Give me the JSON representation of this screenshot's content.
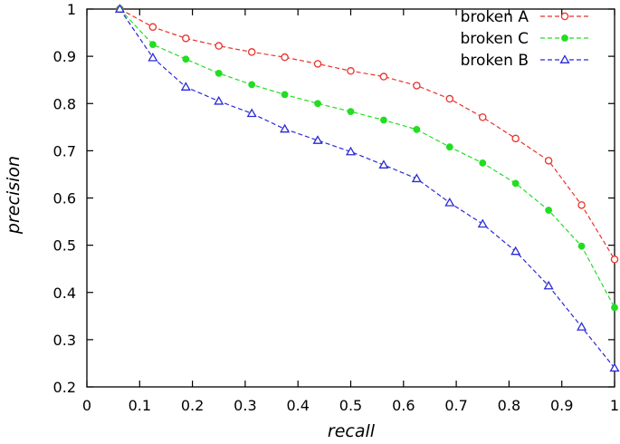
{
  "chart_data": {
    "type": "line",
    "title": "",
    "xlabel": "recall",
    "ylabel": "precision",
    "xlim": [
      0,
      1
    ],
    "ylim": [
      0.2,
      1
    ],
    "xticks": [
      0,
      0.1,
      0.2,
      0.3,
      0.4,
      0.5,
      0.6,
      0.7,
      0.8,
      0.9,
      1
    ],
    "xtick_labels": [
      "0",
      "0.1",
      "0.2",
      "0.3",
      "0.4",
      "0.5",
      "0.6",
      "0.7",
      "0.8",
      "0.9",
      "1"
    ],
    "yticks": [
      0.2,
      0.3,
      0.4,
      0.5,
      0.6,
      0.7,
      0.8,
      0.9,
      1
    ],
    "ytick_labels": [
      "0.2",
      "0.3",
      "0.4",
      "0.5",
      "0.6",
      "0.7",
      "0.8",
      "0.9",
      "1"
    ],
    "grid": false,
    "legend_position": "top-right",
    "x": [
      0.0625,
      0.125,
      0.1875,
      0.25,
      0.3125,
      0.375,
      0.4375,
      0.5,
      0.5625,
      0.625,
      0.6875,
      0.75,
      0.8125,
      0.875,
      0.9375,
      1.0
    ],
    "series": [
      {
        "name": "broken A",
        "color": "#e8322b",
        "marker": "open-circle",
        "values": [
          1.0,
          0.962,
          0.938,
          0.922,
          0.909,
          0.898,
          0.884,
          0.869,
          0.857,
          0.838,
          0.81,
          0.771,
          0.726,
          0.679,
          0.585,
          0.47
        ]
      },
      {
        "name": "broken C",
        "color": "#22dd22",
        "marker": "filled-circle",
        "values": [
          1.0,
          0.925,
          0.894,
          0.864,
          0.84,
          0.819,
          0.8,
          0.783,
          0.765,
          0.745,
          0.708,
          0.674,
          0.631,
          0.574,
          0.498,
          0.368
        ]
      },
      {
        "name": "broken B",
        "color": "#2a2ad6",
        "marker": "open-triangle",
        "values": [
          1.0,
          0.897,
          0.835,
          0.805,
          0.779,
          0.746,
          0.722,
          0.698,
          0.67,
          0.641,
          0.59,
          0.545,
          0.487,
          0.414,
          0.327,
          0.24
        ]
      }
    ]
  }
}
